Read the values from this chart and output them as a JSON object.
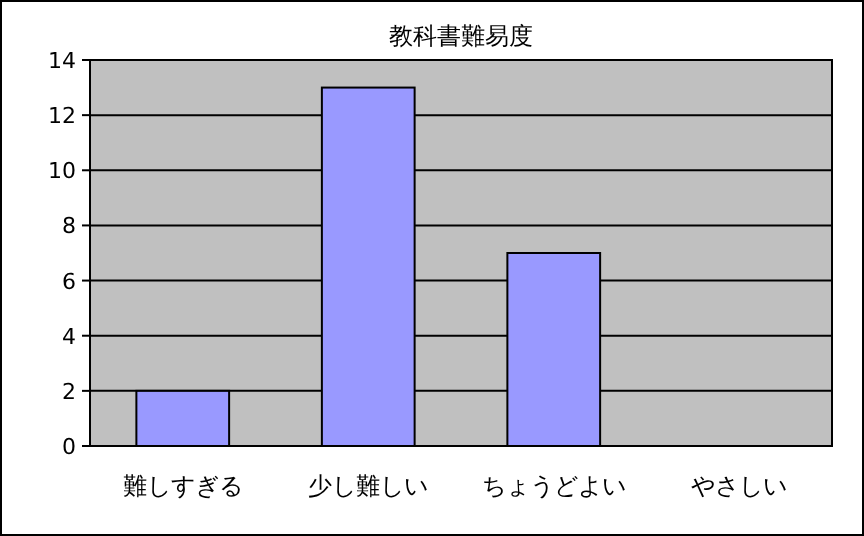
{
  "chart_data": {
    "type": "bar",
    "title": "教科書難易度",
    "categories": [
      "難しすぎる",
      "少し難しい",
      "ちょうどよい",
      "やさしい"
    ],
    "values": [
      2,
      13,
      7,
      0
    ],
    "color": "#9999ff",
    "ylim": [
      0,
      14
    ],
    "yticks": [
      0,
      2,
      4,
      6,
      8,
      10,
      12,
      14
    ],
    "grid": "y"
  }
}
